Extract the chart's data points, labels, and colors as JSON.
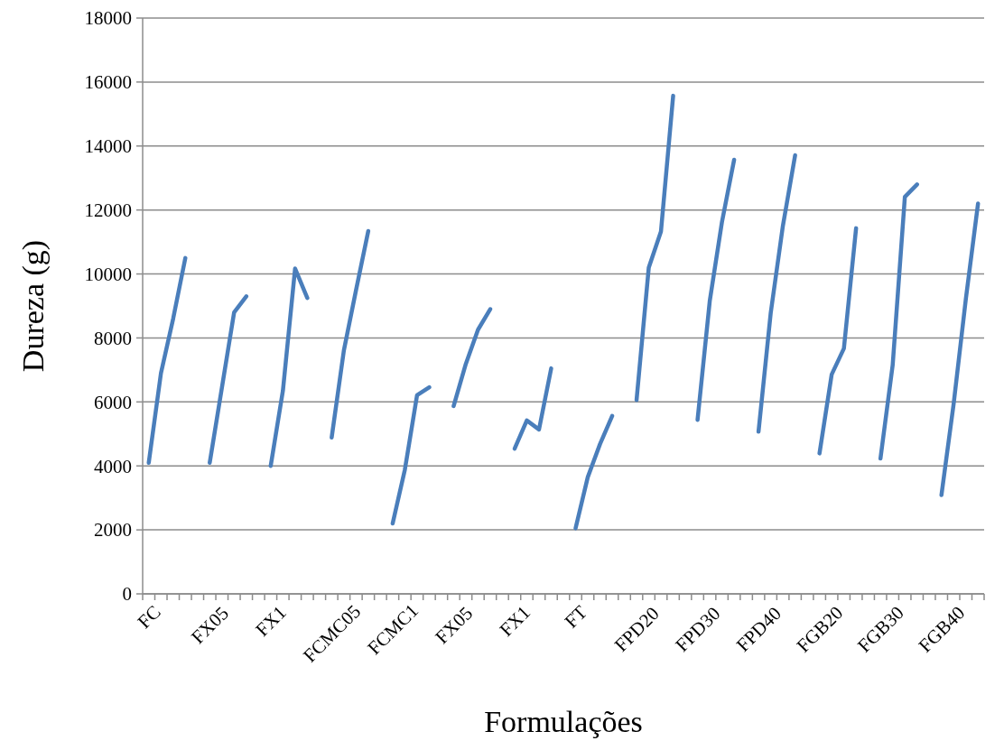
{
  "chart_data": {
    "type": "line",
    "xlabel": "Formulações",
    "ylabel": "Dureza (g)",
    "categories": [
      "FC",
      null,
      null,
      null,
      null,
      "FX05",
      null,
      null,
      null,
      null,
      "FX1",
      null,
      null,
      null,
      null,
      "FCMC05",
      null,
      null,
      null,
      null,
      "FCMC1",
      null,
      null,
      null,
      null,
      "FX05",
      null,
      null,
      null,
      null,
      "FX1",
      null,
      null,
      null,
      null,
      "FT",
      null,
      null,
      null,
      null,
      "FPD20",
      null,
      null,
      null,
      null,
      "FPD30",
      null,
      null,
      null,
      null,
      "FPD40",
      null,
      null,
      null,
      null,
      "FGB20",
      null,
      null,
      null,
      null,
      "FGB30",
      null,
      null,
      null,
      null,
      "FGB40",
      null,
      null,
      null
    ],
    "series": [
      {
        "color": "#4a7ebb",
        "values": [
          4100,
          6900,
          8600,
          10500,
          null,
          null,
          null,
          null,
          null,
          null,
          null,
          null,
          null,
          null,
          null,
          null,
          null,
          null,
          null,
          null,
          null,
          null,
          null,
          null,
          null,
          null,
          null,
          null,
          null,
          null,
          null,
          null,
          null,
          null,
          null,
          null,
          null,
          null,
          null,
          null,
          null,
          null,
          null,
          null,
          null,
          null,
          null,
          null,
          null,
          null,
          null,
          null,
          null,
          null,
          null,
          null,
          null,
          null,
          null,
          null,
          null,
          null,
          null,
          null,
          null,
          null,
          null,
          null,
          null
        ]
      },
      {
        "color": "#4a7ebb",
        "values": [
          null,
          null,
          null,
          null,
          null,
          4100,
          6450,
          8800,
          9300,
          null,
          null,
          null,
          null,
          null,
          null,
          null,
          null,
          null,
          null,
          null,
          null,
          null,
          null,
          null,
          null,
          null,
          null,
          null,
          null,
          null,
          null,
          null,
          null,
          null,
          null,
          null,
          null,
          null,
          null,
          null,
          null,
          null,
          null,
          null,
          null,
          null,
          null,
          null,
          null,
          null,
          null,
          null,
          null,
          null,
          null,
          null,
          null,
          null,
          null,
          null,
          null,
          null,
          null,
          null,
          null,
          null,
          null,
          null,
          null
        ]
      },
      {
        "color": "#4a7ebb",
        "values": [
          null,
          null,
          null,
          null,
          null,
          null,
          null,
          null,
          null,
          null,
          4000,
          6350,
          10170,
          9250,
          null,
          null,
          null,
          null,
          null,
          null,
          null,
          null,
          null,
          null,
          null,
          null,
          null,
          null,
          null,
          null,
          null,
          null,
          null,
          null,
          null,
          null,
          null,
          null,
          null,
          null,
          null,
          null,
          null,
          null,
          null,
          null,
          null,
          null,
          null,
          null,
          null,
          null,
          null,
          null,
          null,
          null,
          null,
          null,
          null,
          null,
          null,
          null,
          null,
          null,
          null,
          null,
          null,
          null,
          null
        ]
      },
      {
        "color": "#4a7ebb",
        "values": [
          null,
          null,
          null,
          null,
          null,
          null,
          null,
          null,
          null,
          null,
          null,
          null,
          null,
          null,
          null,
          4890,
          7610,
          9500,
          11340,
          null,
          null,
          null,
          null,
          null,
          null,
          null,
          null,
          null,
          null,
          null,
          null,
          null,
          null,
          null,
          null,
          null,
          null,
          null,
          null,
          null,
          null,
          null,
          null,
          null,
          null,
          null,
          null,
          null,
          null,
          null,
          null,
          null,
          null,
          null,
          null,
          null,
          null,
          null,
          null,
          null,
          null,
          null,
          null,
          null,
          null,
          null,
          null,
          null,
          null
        ]
      },
      {
        "color": "#4a7ebb",
        "values": [
          null,
          null,
          null,
          null,
          null,
          null,
          null,
          null,
          null,
          null,
          null,
          null,
          null,
          null,
          null,
          null,
          null,
          null,
          null,
          null,
          2200,
          3880,
          6210,
          6460,
          null,
          null,
          null,
          null,
          null,
          null,
          null,
          null,
          null,
          null,
          null,
          null,
          null,
          null,
          null,
          null,
          null,
          null,
          null,
          null,
          null,
          null,
          null,
          null,
          null,
          null,
          null,
          null,
          null,
          null,
          null,
          null,
          null,
          null,
          null,
          null,
          null,
          null,
          null,
          null,
          null,
          null,
          null,
          null,
          null
        ]
      },
      {
        "color": "#4a7ebb",
        "values": [
          null,
          null,
          null,
          null,
          null,
          null,
          null,
          null,
          null,
          null,
          null,
          null,
          null,
          null,
          null,
          null,
          null,
          null,
          null,
          null,
          null,
          null,
          null,
          null,
          null,
          5870,
          7190,
          8260,
          8900,
          null,
          null,
          null,
          null,
          null,
          null,
          null,
          null,
          null,
          null,
          null,
          null,
          null,
          null,
          null,
          null,
          null,
          null,
          null,
          null,
          null,
          null,
          null,
          null,
          null,
          null,
          null,
          null,
          null,
          null,
          null,
          null,
          null,
          null,
          null,
          null,
          null,
          null,
          null,
          null
        ]
      },
      {
        "color": "#4a7ebb",
        "values": [
          null,
          null,
          null,
          null,
          null,
          null,
          null,
          null,
          null,
          null,
          null,
          null,
          null,
          null,
          null,
          null,
          null,
          null,
          null,
          null,
          null,
          null,
          null,
          null,
          null,
          null,
          null,
          null,
          null,
          null,
          4540,
          5420,
          5140,
          7050,
          null,
          null,
          null,
          null,
          null,
          null,
          null,
          null,
          null,
          null,
          null,
          null,
          null,
          null,
          null,
          null,
          null,
          null,
          null,
          null,
          null,
          null,
          null,
          null,
          null,
          null,
          null,
          null,
          null,
          null,
          null,
          null,
          null,
          null,
          null
        ]
      },
      {
        "color": "#4a7ebb",
        "values": [
          null,
          null,
          null,
          null,
          null,
          null,
          null,
          null,
          null,
          null,
          null,
          null,
          null,
          null,
          null,
          null,
          null,
          null,
          null,
          null,
          null,
          null,
          null,
          null,
          null,
          null,
          null,
          null,
          null,
          null,
          null,
          null,
          null,
          null,
          null,
          2050,
          3650,
          4680,
          5560,
          null,
          null,
          null,
          null,
          null,
          null,
          null,
          null,
          null,
          null,
          null,
          null,
          null,
          null,
          null,
          null,
          null,
          null,
          null,
          null,
          null,
          null,
          null,
          null,
          null,
          null,
          null,
          null,
          null,
          null
        ]
      },
      {
        "color": "#4a7ebb",
        "values": [
          null,
          null,
          null,
          null,
          null,
          null,
          null,
          null,
          null,
          null,
          null,
          null,
          null,
          null,
          null,
          null,
          null,
          null,
          null,
          null,
          null,
          null,
          null,
          null,
          null,
          null,
          null,
          null,
          null,
          null,
          null,
          null,
          null,
          null,
          null,
          null,
          null,
          null,
          null,
          null,
          6060,
          10200,
          11330,
          15570,
          null,
          null,
          null,
          null,
          null,
          null,
          null,
          null,
          null,
          null,
          null,
          null,
          null,
          null,
          null,
          null,
          null,
          null,
          null,
          null,
          null,
          null,
          null,
          null,
          null
        ]
      },
      {
        "color": "#4a7ebb",
        "values": [
          null,
          null,
          null,
          null,
          null,
          null,
          null,
          null,
          null,
          null,
          null,
          null,
          null,
          null,
          null,
          null,
          null,
          null,
          null,
          null,
          null,
          null,
          null,
          null,
          null,
          null,
          null,
          null,
          null,
          null,
          null,
          null,
          null,
          null,
          null,
          null,
          null,
          null,
          null,
          null,
          null,
          null,
          null,
          null,
          null,
          5440,
          9150,
          11620,
          13570,
          null,
          null,
          null,
          null,
          null,
          null,
          null,
          null,
          null,
          null,
          null,
          null,
          null,
          null,
          null,
          null,
          null,
          null,
          null,
          null
        ]
      },
      {
        "color": "#4a7ebb",
        "values": [
          null,
          null,
          null,
          null,
          null,
          null,
          null,
          null,
          null,
          null,
          null,
          null,
          null,
          null,
          null,
          null,
          null,
          null,
          null,
          null,
          null,
          null,
          null,
          null,
          null,
          null,
          null,
          null,
          null,
          null,
          null,
          null,
          null,
          null,
          null,
          null,
          null,
          null,
          null,
          null,
          null,
          null,
          null,
          null,
          null,
          null,
          null,
          null,
          null,
          null,
          5070,
          8780,
          11510,
          13710,
          null,
          null,
          null,
          null,
          null,
          null,
          null,
          null,
          null,
          null,
          null,
          null,
          null,
          null,
          null
        ]
      },
      {
        "color": "#4a7ebb",
        "values": [
          null,
          null,
          null,
          null,
          null,
          null,
          null,
          null,
          null,
          null,
          null,
          null,
          null,
          null,
          null,
          null,
          null,
          null,
          null,
          null,
          null,
          null,
          null,
          null,
          null,
          null,
          null,
          null,
          null,
          null,
          null,
          null,
          null,
          null,
          null,
          null,
          null,
          null,
          null,
          null,
          null,
          null,
          null,
          null,
          null,
          null,
          null,
          null,
          null,
          null,
          null,
          null,
          null,
          null,
          null,
          4390,
          6860,
          7670,
          11430,
          null,
          null,
          null,
          null,
          null,
          null,
          null,
          null,
          null,
          null
        ]
      },
      {
        "color": "#4a7ebb",
        "values": [
          null,
          null,
          null,
          null,
          null,
          null,
          null,
          null,
          null,
          null,
          null,
          null,
          null,
          null,
          null,
          null,
          null,
          null,
          null,
          null,
          null,
          null,
          null,
          null,
          null,
          null,
          null,
          null,
          null,
          null,
          null,
          null,
          null,
          null,
          null,
          null,
          null,
          null,
          null,
          null,
          null,
          null,
          null,
          null,
          null,
          null,
          null,
          null,
          null,
          null,
          null,
          null,
          null,
          null,
          null,
          null,
          null,
          null,
          null,
          null,
          4230,
          7150,
          12410,
          12800,
          null,
          null,
          null,
          null,
          null
        ]
      },
      {
        "color": "#4a7ebb",
        "values": [
          null,
          null,
          null,
          null,
          null,
          null,
          null,
          null,
          null,
          null,
          null,
          null,
          null,
          null,
          null,
          null,
          null,
          null,
          null,
          null,
          null,
          null,
          null,
          null,
          null,
          null,
          null,
          null,
          null,
          null,
          null,
          null,
          null,
          null,
          null,
          null,
          null,
          null,
          null,
          null,
          null,
          null,
          null,
          null,
          null,
          null,
          null,
          null,
          null,
          null,
          null,
          null,
          null,
          null,
          null,
          null,
          null,
          null,
          null,
          null,
          null,
          null,
          null,
          null,
          null,
          3090,
          5940,
          9220,
          12200
        ]
      }
    ],
    "ylim": [
      0,
      18000
    ],
    "yticks": [
      0,
      2000,
      4000,
      6000,
      8000,
      10000,
      12000,
      14000,
      16000,
      18000
    ],
    "grid": "y",
    "marker": "none",
    "line_style": "solid"
  }
}
